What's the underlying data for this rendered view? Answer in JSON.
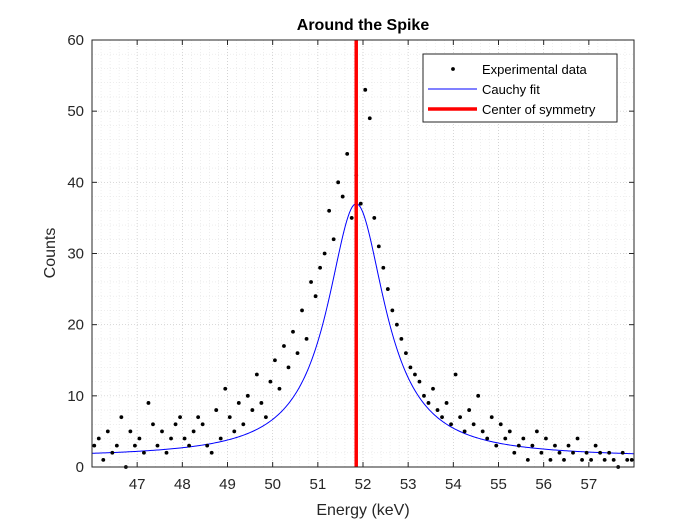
{
  "chart_data": {
    "type": "scatter",
    "title": "Around the Spike",
    "xlabel": "Energy (keV)",
    "ylabel": "Counts",
    "xlim": [
      46.0,
      58.0
    ],
    "ylim": [
      0,
      60
    ],
    "xticks": [
      47,
      48,
      49,
      50,
      51,
      52,
      53,
      54,
      55,
      56,
      57
    ],
    "yticks": [
      0,
      10,
      20,
      30,
      40,
      50,
      60
    ],
    "grid": "on (major and minor, dotted)",
    "legend_position": "top-right",
    "colors": {
      "data": "#000000",
      "fit": "#0000ff",
      "center": "#ff0000"
    },
    "series": [
      {
        "name": "Experimental data",
        "kind": "points",
        "x": [
          46.05,
          46.15,
          46.25,
          46.35,
          46.45,
          46.55,
          46.65,
          46.75,
          46.85,
          46.95,
          47.05,
          47.15,
          47.25,
          47.35,
          47.45,
          47.55,
          47.65,
          47.75,
          47.85,
          47.95,
          48.05,
          48.15,
          48.25,
          48.35,
          48.45,
          48.55,
          48.65,
          48.75,
          48.85,
          48.95,
          49.05,
          49.15,
          49.25,
          49.35,
          49.45,
          49.55,
          49.65,
          49.75,
          49.85,
          49.95,
          50.05,
          50.15,
          50.25,
          50.35,
          50.45,
          50.55,
          50.65,
          50.75,
          50.85,
          50.95,
          51.05,
          51.15,
          51.25,
          51.35,
          51.45,
          51.55,
          51.65,
          51.75,
          51.85,
          51.95,
          52.05,
          52.15,
          52.25,
          52.35,
          52.45,
          52.55,
          52.65,
          52.75,
          52.85,
          52.95,
          53.05,
          53.15,
          53.25,
          53.35,
          53.45,
          53.55,
          53.65,
          53.75,
          53.85,
          53.95,
          54.05,
          54.15,
          54.25,
          54.35,
          54.45,
          54.55,
          54.65,
          54.75,
          54.85,
          54.95,
          55.05,
          55.15,
          55.25,
          55.35,
          55.45,
          55.55,
          55.65,
          55.75,
          55.85,
          55.95,
          56.05,
          56.15,
          56.25,
          56.35,
          56.45,
          56.55,
          56.65,
          56.75,
          56.85,
          56.95,
          57.05,
          57.15,
          57.25,
          57.35,
          57.45,
          57.55,
          57.65,
          57.75,
          57.85,
          57.95
        ],
        "y": [
          3,
          4,
          1,
          5,
          2,
          3,
          7,
          0,
          5,
          3,
          4,
          2,
          9,
          6,
          3,
          5,
          2,
          4,
          6,
          7,
          4,
          3,
          5,
          7,
          6,
          3,
          2,
          8,
          4,
          11,
          7,
          5,
          9,
          6,
          10,
          8,
          13,
          9,
          7,
          12,
          15,
          11,
          17,
          14,
          19,
          16,
          22,
          18,
          26,
          24,
          28,
          30,
          36,
          32,
          40,
          38,
          44,
          35,
          41,
          37,
          53,
          49,
          35,
          31,
          28,
          25,
          22,
          20,
          18,
          16,
          14,
          13,
          12,
          10,
          9,
          11,
          8,
          7,
          9,
          6,
          13,
          7,
          5,
          8,
          6,
          10,
          5,
          4,
          7,
          3,
          6,
          4,
          5,
          2,
          3,
          4,
          1,
          3,
          5,
          2,
          4,
          1,
          3,
          2,
          1,
          3,
          2,
          4,
          1,
          2,
          1,
          3,
          2,
          1,
          2,
          1,
          0,
          2,
          1,
          1
        ]
      },
      {
        "name": "Cauchy fit",
        "kind": "curve",
        "model": "lorentzian",
        "center": 51.85,
        "amplitude": 35.7,
        "hwhm": 0.78,
        "baseline": 1.3
      },
      {
        "name": "Center of symmetry",
        "kind": "vline",
        "x": 51.85
      }
    ]
  }
}
